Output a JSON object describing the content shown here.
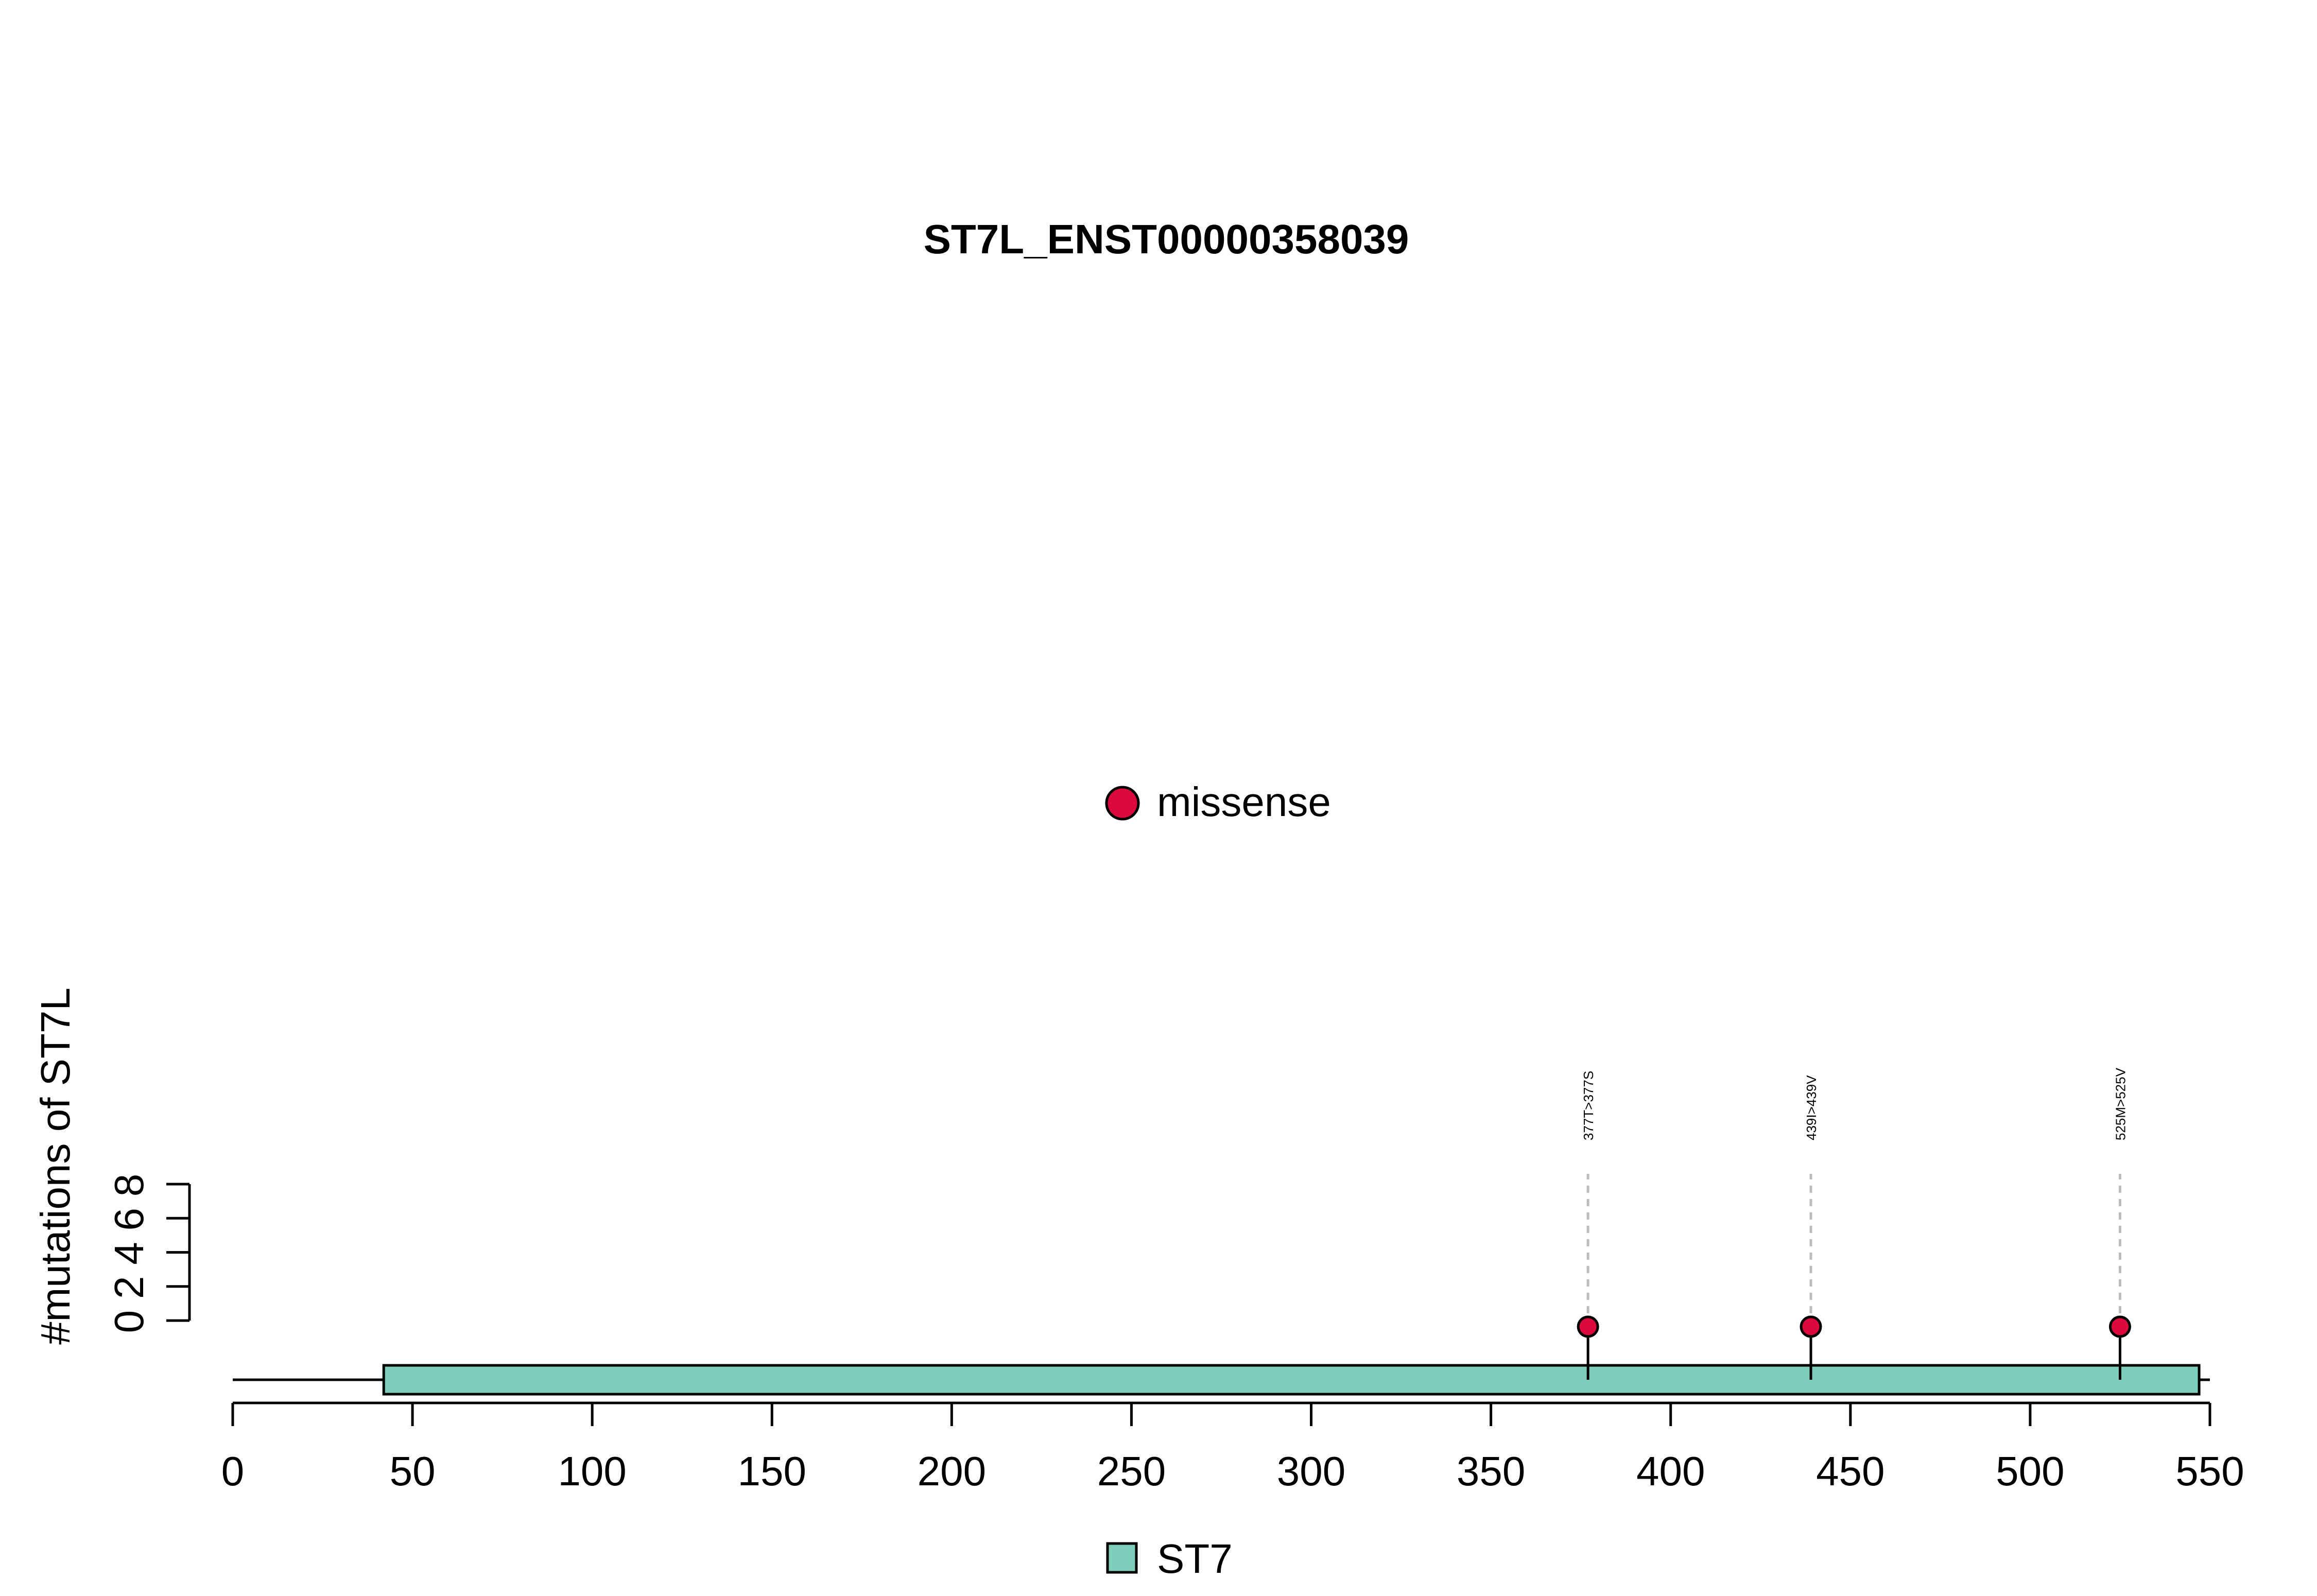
{
  "chart_data": {
    "type": "lollipop",
    "title": "ST7L_ENST00000358039",
    "ylabel": "#mutations of ST7L",
    "xlabel": "",
    "xlim": [
      0,
      550
    ],
    "x_ticks": [
      0,
      50,
      100,
      150,
      200,
      250,
      300,
      350,
      400,
      450,
      500,
      550
    ],
    "y_ticks": [
      0,
      2,
      4,
      6,
      8
    ],
    "ylim": [
      0,
      8
    ],
    "protein_length": 550,
    "legend_top": {
      "label": "missense",
      "color": "#DC0A3C"
    },
    "legend_bottom": {
      "label": "ST7",
      "color": "#7FCDBB"
    },
    "domains": [
      {
        "name": "ST7",
        "start": 42,
        "end": 547,
        "color": "#7FCDBB"
      }
    ],
    "mutations": [
      {
        "position": 377,
        "count": 1,
        "label": "377T>377S",
        "type": "missense"
      },
      {
        "position": 439,
        "count": 1,
        "label": "439I>439V",
        "type": "missense"
      },
      {
        "position": 525,
        "count": 1,
        "label": "525M>525V",
        "type": "missense"
      }
    ]
  }
}
